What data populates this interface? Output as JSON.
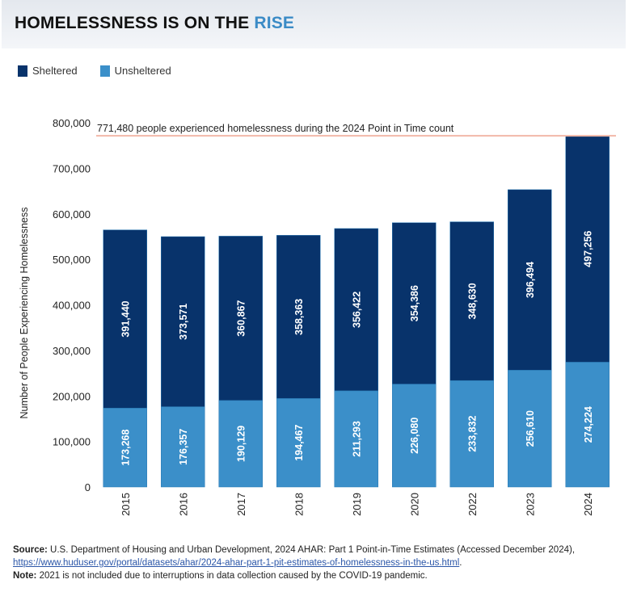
{
  "header": {
    "title_main": "HOMELESSNESS IS ON THE",
    "title_accent": "RISE"
  },
  "colors": {
    "sheltered": "#08336b",
    "unsheltered": "#3b8fc9",
    "accent": "#3b8bc6",
    "reference_line": "#f2b8a8"
  },
  "chart_data": {
    "type": "bar",
    "stacked": true,
    "categories": [
      "2015",
      "2016",
      "2017",
      "2018",
      "2019",
      "2020",
      "2022",
      "2023",
      "2024"
    ],
    "series": [
      {
        "name": "Unsheltered",
        "values": [
          173268,
          176357,
          190129,
          194467,
          211293,
          226080,
          233832,
          256610,
          274224
        ],
        "labels": [
          "173,268",
          "176,357",
          "190,129",
          "194,467",
          "211,293",
          "226,080",
          "233,832",
          "256,610",
          "274,224"
        ]
      },
      {
        "name": "Sheltered",
        "values": [
          391440,
          373571,
          360867,
          358363,
          356422,
          354386,
          348630,
          396494,
          497256
        ],
        "labels": [
          "391,440",
          "373,571",
          "360,867",
          "358,363",
          "356,422",
          "354,386",
          "348,630",
          "396,494",
          "497,256"
        ]
      }
    ],
    "legend": [
      "Sheltered",
      "Unsheltered"
    ],
    "legend_position": "top-left",
    "ylabel": "Number of People Experiencing Homelessness",
    "xlabel": "",
    "ylim": [
      0,
      800000
    ],
    "yticks": [
      0,
      100000,
      200000,
      300000,
      400000,
      500000,
      600000,
      700000,
      800000
    ],
    "ytick_labels": [
      "0",
      "100,000",
      "200,000",
      "300,000",
      "400,000",
      "500,000",
      "600,000",
      "700,000",
      "800,000"
    ],
    "grid": false,
    "reference_line": {
      "value": 771480,
      "label": "771,480 people experienced homelessness during the 2024 Point in Time count"
    }
  },
  "footer": {
    "source_label": "Source:",
    "source_text": "U.S. Department of Housing and Urban Development, 2024 AHAR: Part 1 Point-in-Time Estimates (Accessed December 2024),",
    "source_link": "https://www.huduser.gov/portal/datasets/ahar/2024-ahar-part-1-pit-estimates-of-homelessness-in-the-us.html",
    "note_label": "Note:",
    "note_text": "2021 is not included due to interruptions in data collection caused by the COVID-19 pandemic."
  }
}
